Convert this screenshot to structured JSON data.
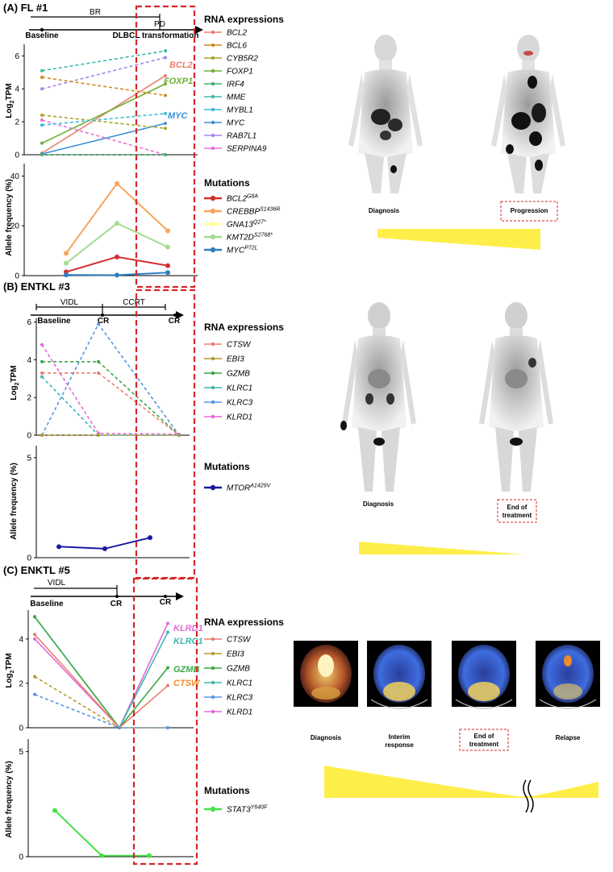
{
  "colors": {
    "BCL2": "#e8806f",
    "BCL6": "#cd8a1e",
    "CYB5R2": "#a7a42a",
    "FOXP1": "#6fae33",
    "IRF4": "#3fb26b",
    "MME": "#3fb8a6",
    "MYBL1": "#40bcd8",
    "MYC": "#3b8fd6",
    "RAB7L1": "#a786e6",
    "SERPINA9": "#e96fd6",
    "CTSW": "#e8806f",
    "EBI3": "#b59a2a",
    "GZMB": "#3aa843",
    "KLRC1": "#3fb7b1",
    "KLRC3": "#5a95e3",
    "KLRD1": "#e369d7",
    "mut_BCL2": "#d32f2f",
    "mut_CREBBP": "#f5a65b",
    "mut_GNA13": "#ffff99",
    "mut_KMT2D": "#a3dc8e",
    "mut_MYC": "#2f7fc1",
    "mut_MTOR": "#1a1aa0",
    "mut_STAT3": "#48e04a",
    "dashed_box": "#d62728",
    "triangle": "#ffee4a"
  },
  "panels": [
    {
      "label": "(A) FL #1",
      "timeline": {
        "spans": [
          {
            "text": "BR"
          },
          {
            "text": "PD"
          }
        ],
        "points": [
          {
            "text": "Baseline"
          },
          {
            "text": "DLBCL transformation"
          }
        ]
      },
      "rna_title": "RNA expressions",
      "mut_title": "Mutations",
      "rna_legend": [
        {
          "gene": "BCL2",
          "color": "#e8806f"
        },
        {
          "gene": "BCL6",
          "color": "#cd8a1e"
        },
        {
          "gene": "CYB5R2",
          "color": "#a7a42a"
        },
        {
          "gene": "FOXP1",
          "color": "#6fae33"
        },
        {
          "gene": "IRF4",
          "color": "#3fb26b"
        },
        {
          "gene": "MME",
          "color": "#3fb8a6"
        },
        {
          "gene": "MYBL1",
          "color": "#40bcd8"
        },
        {
          "gene": "MYC",
          "color": "#3b8fd6"
        },
        {
          "gene": "RAB7L1",
          "color": "#a786e6"
        },
        {
          "gene": "SERPINA9",
          "color": "#e96fd6"
        }
      ],
      "mut_legend": [
        {
          "gene": "BCL2",
          "sup": "G8A",
          "color": "#d32f2f"
        },
        {
          "gene": "CREBBP",
          "sup": "S1436R",
          "color": "#f5a65b"
        },
        {
          "gene": "GNA13",
          "sup": "Q27*",
          "color": "#ffff99"
        },
        {
          "gene": "KMT2D",
          "sup": "S2768*",
          "color": "#a3dc8e"
        },
        {
          "gene": "MYC",
          "sup": "P72L",
          "color": "#2f7fc1"
        }
      ],
      "rna_plot": {
        "ylabel": "Log2TPM",
        "yticks": [
          "0",
          "2",
          "4",
          "6"
        ],
        "ylim": [
          0,
          6.7
        ],
        "x": [
          1,
          2
        ],
        "series": [
          {
            "name": "BCL2",
            "values": [
              0.1,
              4.8
            ],
            "dashed": false,
            "color": "#e8806f"
          },
          {
            "name": "FOXP1",
            "values": [
              0.7,
              4.3
            ],
            "dashed": false,
            "color": "#6fae33"
          },
          {
            "name": "MYC",
            "values": [
              0.05,
              1.9
            ],
            "dashed": false,
            "color": "#3b8fd6"
          },
          {
            "name": "MME",
            "values": [
              5.1,
              6.3
            ],
            "dashed": true,
            "color": "#3fb8a6"
          },
          {
            "name": "RAB7L1",
            "values": [
              4.0,
              5.9
            ],
            "dashed": true,
            "color": "#a786e6"
          },
          {
            "name": "BCL6",
            "values": [
              4.7,
              3.6
            ],
            "dashed": true,
            "color": "#cd8a1e"
          },
          {
            "name": "CYB5R2",
            "values": [
              2.4,
              1.6
            ],
            "dashed": true,
            "color": "#a7a42a"
          },
          {
            "name": "SERPINA9",
            "values": [
              2.1,
              0.0
            ],
            "dashed": true,
            "color": "#e96fd6"
          },
          {
            "name": "IRF4",
            "values": [
              0.0,
              0.0
            ],
            "dashed": true,
            "color": "#3fb26b"
          },
          {
            "name": "MYBL1",
            "values": [
              1.8,
              2.5
            ],
            "dashed": true,
            "color": "#40bcd8"
          }
        ],
        "labels": [
          {
            "text": "BCL2",
            "color": "#e8806f"
          },
          {
            "text": "FOXP1",
            "color": "#6fae33"
          },
          {
            "text": "MYC",
            "color": "#3b8fd6"
          }
        ]
      },
      "mut_plot": {
        "ylabel": "Allele frequency (%)",
        "yticks": [
          "0",
          "20",
          "40"
        ],
        "ylim": [
          0,
          45
        ],
        "x": [
          1,
          2,
          3
        ],
        "series": [
          {
            "name": "CREBBP",
            "values": [
              9,
              37,
              18
            ],
            "color": "#f5a65b"
          },
          {
            "name": "KMT2D",
            "values": [
              5,
              21,
              11.5
            ],
            "color": "#a3dc8e"
          },
          {
            "name": "BCL2",
            "values": [
              1.5,
              7.5,
              4
            ],
            "color": "#d32f2f"
          },
          {
            "name": "MYC",
            "values": [
              0.3,
              0.2,
              1.2
            ],
            "color": "#2f7fc1"
          }
        ]
      },
      "images": {
        "captions": [
          "Diagnosis",
          "Progression"
        ]
      }
    },
    {
      "label": "(B) ENTKL #3",
      "timeline": {
        "spans": [
          {
            "text": "VIDL"
          },
          {
            "text": "CCRT"
          }
        ],
        "points": [
          {
            "text": "Baseline"
          },
          {
            "text": "CR"
          },
          {
            "text": "CR"
          }
        ]
      },
      "rna_title": "RNA expressions",
      "mut_title": "Mutations",
      "rna_legend": [
        {
          "gene": "CTSW",
          "color": "#e8806f"
        },
        {
          "gene": "EBI3",
          "color": "#b59a2a"
        },
        {
          "gene": "GZMB",
          "color": "#3aa843"
        },
        {
          "gene": "KLRC1",
          "color": "#3fb7b1"
        },
        {
          "gene": "KLRC3",
          "color": "#5a95e3"
        },
        {
          "gene": "KLRD1",
          "color": "#e369d7"
        }
      ],
      "mut_legend": [
        {
          "gene": "MTOR",
          "sup": "A1429V",
          "color": "#1a1aa0"
        }
      ],
      "rna_plot": {
        "ylabel": "Log2TPM",
        "yticks": [
          "0",
          "2",
          "4",
          "6"
        ],
        "ylim": [
          0,
          6.2
        ],
        "x": [
          1,
          2,
          3
        ],
        "series": [
          {
            "name": "KLRD1",
            "values": [
              4.8,
              0.1,
              0.05
            ],
            "dashed": true,
            "color": "#e369d7"
          },
          {
            "name": "GZMB",
            "values": [
              3.9,
              3.9,
              0.0
            ],
            "dashed": true,
            "color": "#3aa843"
          },
          {
            "name": "CTSW",
            "values": [
              3.3,
              3.3,
              0.0
            ],
            "dashed": true,
            "color": "#e8806f"
          },
          {
            "name": "KLRC1",
            "values": [
              3.1,
              0.0,
              0.0
            ],
            "dashed": true,
            "color": "#3fb7b1"
          },
          {
            "name": "KLRC3",
            "values": [
              0.0,
              5.9,
              0.0
            ],
            "dashed": true,
            "color": "#5a95e3"
          },
          {
            "name": "EBI3",
            "values": [
              0.0,
              0.0,
              0.0
            ],
            "dashed": true,
            "color": "#b59a2a"
          }
        ]
      },
      "mut_plot": {
        "ylabel": "Allele frequency (%)",
        "yticks": [
          "0",
          "5"
        ],
        "ylim": [
          0,
          5.6
        ],
        "x": [
          1,
          2,
          3
        ],
        "series": [
          {
            "name": "MTOR",
            "values": [
              0.55,
              0.45,
              1.0
            ],
            "color": "#1a1aa0"
          }
        ]
      },
      "images": {
        "captions": [
          "Diagnosis",
          "End of treatment"
        ]
      }
    },
    {
      "label": "(C) ENKTL #5",
      "timeline": {
        "spans": [
          {
            "text": "VIDL"
          }
        ],
        "points": [
          {
            "text": "Baseline"
          },
          {
            "text": "CR"
          },
          {
            "text": "CR"
          }
        ]
      },
      "rna_title": "RNA expressions",
      "mut_title": "Mutations",
      "rna_legend": [
        {
          "gene": "CTSW",
          "color": "#e8806f"
        },
        {
          "gene": "EBI3",
          "color": "#b59a2a"
        },
        {
          "gene": "GZMB",
          "color": "#3aa843"
        },
        {
          "gene": "KLRC1",
          "color": "#3fb7b1"
        },
        {
          "gene": "KLRC3",
          "color": "#5a95e3"
        },
        {
          "gene": "KLRD1",
          "color": "#e369d7"
        }
      ],
      "mut_legend": [
        {
          "gene": "STAT3",
          "sup": "Y640F",
          "color": "#48e04a"
        }
      ],
      "rna_plot": {
        "ylabel": "Log2TPM",
        "yticks": [
          "0",
          "2",
          "4"
        ],
        "ylim": [
          0,
          5.3
        ],
        "x": [
          1,
          2,
          3
        ],
        "series": [
          {
            "name": "KLRD1",
            "values": [
              4.0,
              0.0,
              4.7
            ],
            "dashed": false,
            "color": "#e369d7"
          },
          {
            "name": "KLRC1",
            "values": [
              5.0,
              0.0,
              4.3
            ],
            "dashed": false,
            "color": "#3fb7b1"
          },
          {
            "name": "GZMB",
            "values": [
              5.0,
              0.0,
              2.7
            ],
            "dashed": false,
            "color": "#3aa843"
          },
          {
            "name": "CTSW",
            "values": [
              4.2,
              0.0,
              1.9
            ],
            "dashed": false,
            "color": "#e8806f"
          },
          {
            "name": "EBI3",
            "values": [
              2.3,
              0.0,
              0.0
            ],
            "dashed": true,
            "color": "#b59a2a"
          },
          {
            "name": "KLRC3",
            "values": [
              1.5,
              0.0,
              0.0
            ],
            "dashed": true,
            "color": "#5a95e3"
          }
        ],
        "labels": [
          {
            "text": "KLRD1",
            "color": "#e369d7"
          },
          {
            "text": "KLRC1",
            "color": "#3fb7b1"
          },
          {
            "text": "GZMB",
            "color": "#3aa843"
          },
          {
            "text": "CTSW",
            "color": "#f08a2a"
          }
        ]
      },
      "mut_plot": {
        "ylabel": "Allele frequency (%)",
        "yticks": [
          "0",
          "5"
        ],
        "ylim": [
          0,
          5.6
        ],
        "x": [
          1,
          2,
          3
        ],
        "series": [
          {
            "name": "STAT3",
            "values": [
              2.2,
              0.05,
              0.05
            ],
            "color": "#48e04a"
          }
        ]
      },
      "images": {
        "captions": [
          "Diagnosis",
          "Interim response",
          "End of treatment",
          "Relapse"
        ]
      }
    }
  ],
  "chart_data": [
    {
      "type": "line",
      "title": "(A) FL #1",
      "ylabel": "Log2TPM",
      "categories": [
        "Baseline",
        "DLBCL transformation"
      ],
      "ylim": [
        0,
        6.7
      ],
      "series": [
        {
          "name": "BCL2",
          "values": [
            0.1,
            4.8
          ]
        },
        {
          "name": "BCL6",
          "values": [
            4.7,
            3.6
          ]
        },
        {
          "name": "CYB5R2",
          "values": [
            2.4,
            1.6
          ]
        },
        {
          "name": "FOXP1",
          "values": [
            0.7,
            4.3
          ]
        },
        {
          "name": "IRF4",
          "values": [
            0.0,
            0.0
          ]
        },
        {
          "name": "MME",
          "values": [
            5.1,
            6.3
          ]
        },
        {
          "name": "MYBL1",
          "values": [
            1.8,
            2.5
          ]
        },
        {
          "name": "MYC",
          "values": [
            0.05,
            1.9
          ]
        },
        {
          "name": "RAB7L1",
          "values": [
            4.0,
            5.9
          ]
        },
        {
          "name": "SERPINA9",
          "values": [
            2.1,
            0.0
          ]
        }
      ]
    },
    {
      "type": "line",
      "ylabel": "Allele frequency (%)",
      "ylim": [
        0,
        45
      ],
      "series": [
        {
          "name": "BCL2 G8A",
          "values": [
            1.5,
            7.5,
            4
          ]
        },
        {
          "name": "CREBBP S1436R",
          "values": [
            9,
            37,
            18
          ]
        },
        {
          "name": "KMT2D S2768*",
          "values": [
            5,
            21,
            11.5
          ]
        },
        {
          "name": "MYC P72L",
          "values": [
            0.3,
            0.2,
            1.2
          ]
        }
      ]
    },
    {
      "type": "line",
      "title": "(B) ENTKL #3",
      "ylabel": "Log2TPM",
      "ylim": [
        0,
        6.2
      ],
      "series": [
        {
          "name": "CTSW",
          "values": [
            3.3,
            3.3,
            0.0
          ]
        },
        {
          "name": "EBI3",
          "values": [
            0.0,
            0.0,
            0.0
          ]
        },
        {
          "name": "GZMB",
          "values": [
            3.9,
            3.9,
            0.0
          ]
        },
        {
          "name": "KLRC1",
          "values": [
            3.1,
            0.0,
            0.0
          ]
        },
        {
          "name": "KLRC3",
          "values": [
            0.0,
            5.9,
            0.0
          ]
        },
        {
          "name": "KLRD1",
          "values": [
            4.8,
            0.1,
            0.05
          ]
        }
      ]
    },
    {
      "type": "line",
      "ylabel": "Allele frequency (%)",
      "ylim": [
        0,
        5.6
      ],
      "series": [
        {
          "name": "MTOR A1429V",
          "values": [
            0.55,
            0.45,
            1.0
          ]
        }
      ]
    },
    {
      "type": "line",
      "title": "(C) ENKTL #5",
      "ylabel": "Log2TPM",
      "ylim": [
        0,
        5.3
      ],
      "series": [
        {
          "name": "CTSW",
          "values": [
            4.2,
            0.0,
            1.9
          ]
        },
        {
          "name": "EBI3",
          "values": [
            2.3,
            0.0,
            0.0
          ]
        },
        {
          "name": "GZMB",
          "values": [
            5.0,
            0.0,
            2.7
          ]
        },
        {
          "name": "KLRC1",
          "values": [
            5.0,
            0.0,
            4.3
          ]
        },
        {
          "name": "KLRC3",
          "values": [
            1.5,
            0.0,
            0.0
          ]
        },
        {
          "name": "KLRD1",
          "values": [
            4.0,
            0.0,
            4.7
          ]
        }
      ]
    },
    {
      "type": "line",
      "ylabel": "Allele frequency (%)",
      "ylim": [
        0,
        5.6
      ],
      "series": [
        {
          "name": "STAT3 Y640F",
          "values": [
            2.2,
            0.05,
            0.05
          ]
        }
      ]
    }
  ]
}
